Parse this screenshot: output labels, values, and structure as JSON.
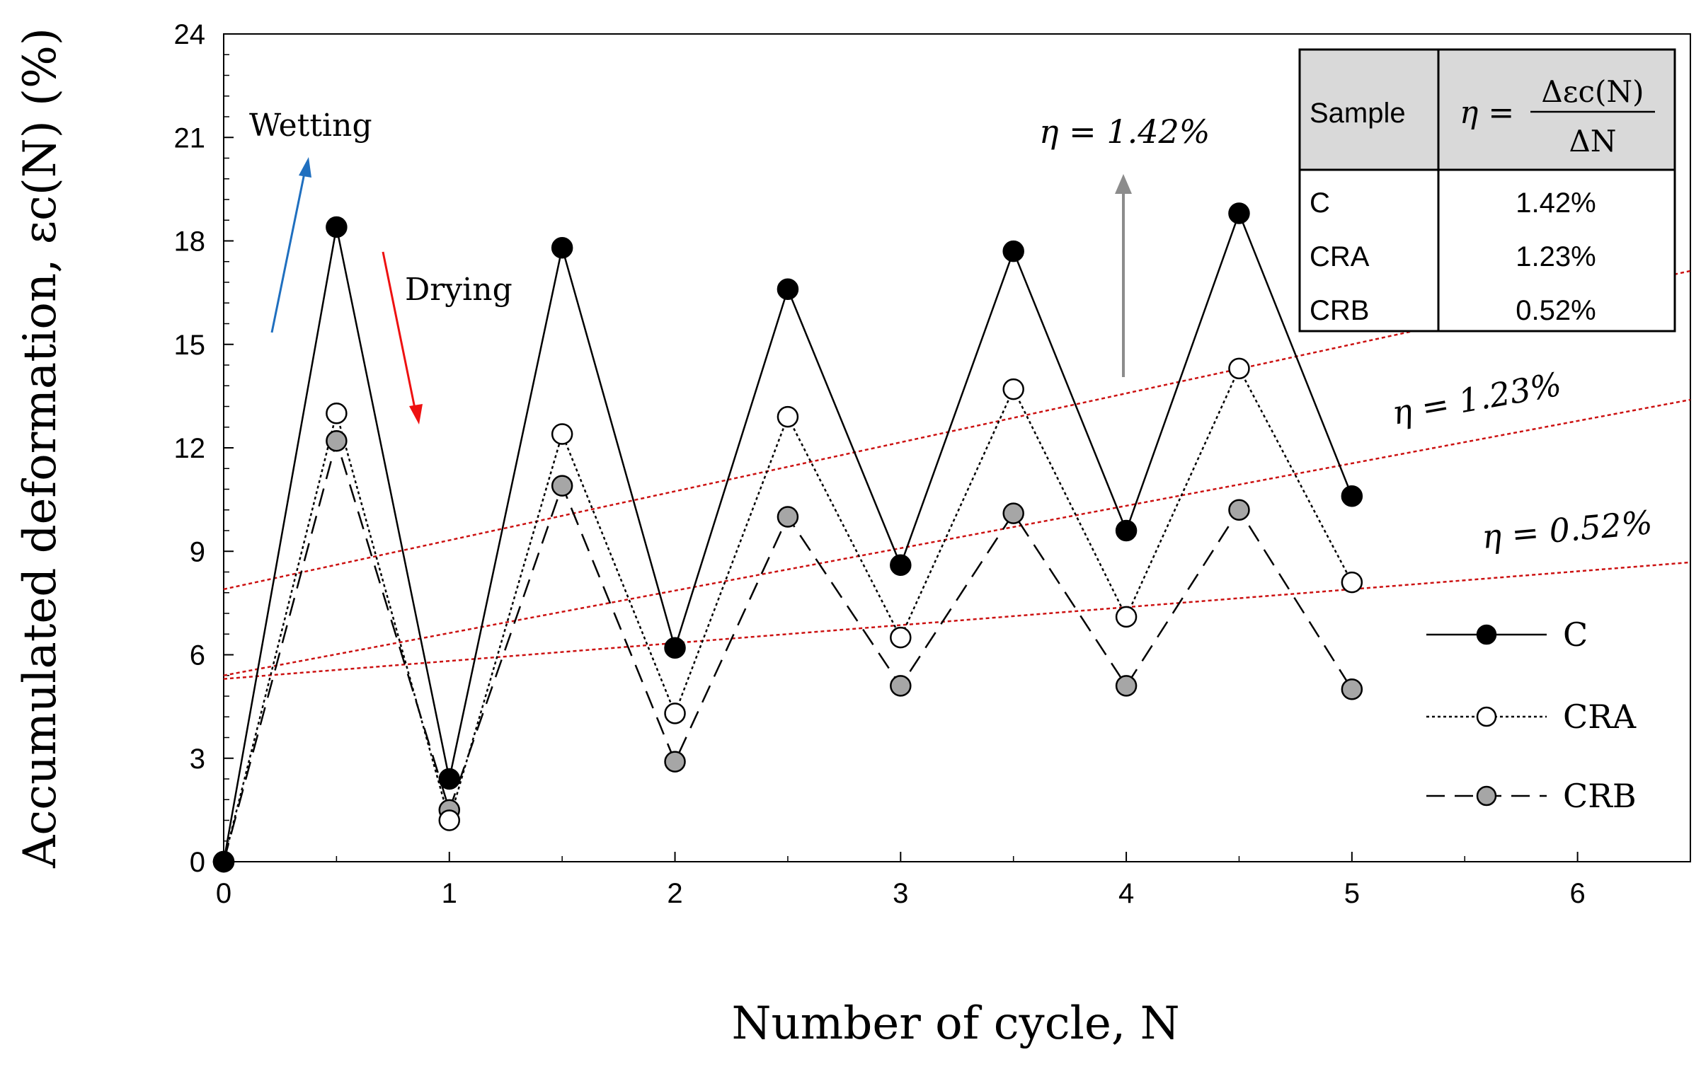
{
  "chart_data": {
    "type": "line",
    "xlabel": "Number of cycle, N",
    "ylabel": "Accumulated deformation, εc(N) (%)",
    "xlim": [
      0,
      6.5
    ],
    "ylim": [
      0,
      24
    ],
    "x_ticks": [
      0,
      1,
      2,
      3,
      4,
      5,
      6
    ],
    "y_ticks": [
      0,
      3,
      6,
      9,
      12,
      15,
      18,
      21,
      24
    ],
    "series": [
      {
        "name": "C",
        "marker": "filled-black",
        "line": "solid",
        "x": [
          0,
          0.5,
          1,
          1.5,
          2,
          2.5,
          3,
          3.5,
          4,
          4.5,
          5
        ],
        "y": [
          0,
          18.4,
          2.4,
          17.8,
          6.2,
          16.6,
          8.6,
          17.7,
          9.6,
          18.8,
          10.6
        ]
      },
      {
        "name": "CRA",
        "marker": "open-white",
        "line": "dotted",
        "x": [
          0,
          0.5,
          1,
          1.5,
          2,
          2.5,
          3,
          3.5,
          4,
          4.5,
          5
        ],
        "y": [
          0,
          13.0,
          1.2,
          12.4,
          4.3,
          12.9,
          6.5,
          13.7,
          7.1,
          14.3,
          8.1
        ]
      },
      {
        "name": "CRB",
        "marker": "filled-gray",
        "line": "dashed",
        "x": [
          0,
          0.5,
          1,
          1.5,
          2,
          2.5,
          3,
          3.5,
          4,
          4.5,
          5
        ],
        "y": [
          0,
          12.2,
          1.5,
          10.9,
          2.9,
          10.0,
          5.1,
          10.1,
          5.1,
          10.2,
          5.0
        ]
      }
    ],
    "trend_lines": [
      {
        "label": "η = 1.42%",
        "slope": 1.42,
        "intercept": 7.9,
        "color": "#cc1111"
      },
      {
        "label": "η = 1.23%",
        "slope": 1.23,
        "intercept": 5.4,
        "color": "#cc1111"
      },
      {
        "label": "η = 0.52%",
        "slope": 0.52,
        "intercept": 5.3,
        "color": "#cc1111"
      }
    ],
    "annotations": {
      "wetting": "Wetting",
      "drying": "Drying",
      "eta_c": "η = 1.42%",
      "eta_cra": "η = 1.23%",
      "eta_crb": "η = 0.52%"
    },
    "table": {
      "header_sample": "Sample",
      "header_eta": "η =",
      "header_frac_num": "Δεc(N)",
      "header_frac_den": "ΔN",
      "rows": [
        {
          "sample": "C",
          "eta": "1.42%"
        },
        {
          "sample": "CRA",
          "eta": "1.23%"
        },
        {
          "sample": "CRB",
          "eta": "0.52%"
        }
      ]
    },
    "legend": {
      "position": "bottom-right",
      "entries": [
        "C",
        "CRA",
        "CRB"
      ]
    },
    "colors": {
      "wetting_arrow": "#1f6fbf",
      "drying_arrow": "#ee1111",
      "eta_arrow": "#8c8c8c",
      "trend": "#cc1111",
      "crb_marker": "#a6a6a6"
    }
  }
}
